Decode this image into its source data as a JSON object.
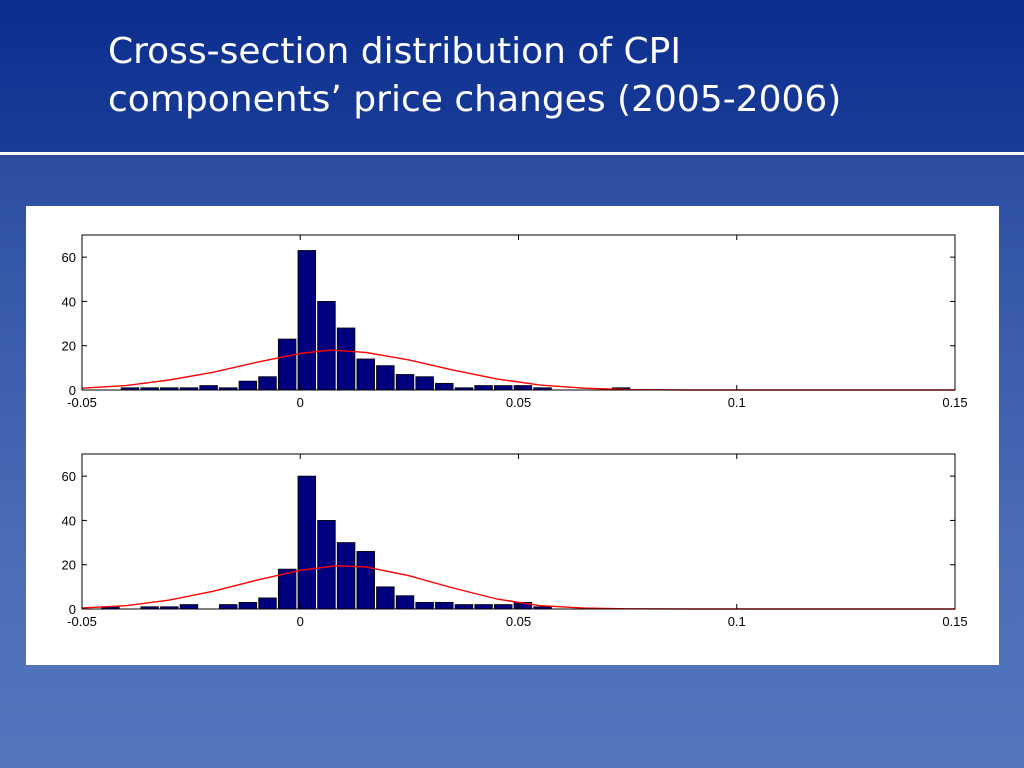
{
  "slide": {
    "title_line1": "Cross-section distribution of CPI",
    "title_line2": "components’ price changes (2005-2006)"
  },
  "colors": {
    "bar_fill": "#00007f",
    "curve": "#ff0000",
    "title_band": "#0b2e8e",
    "background": "#4a6cb6"
  },
  "chart_data": [
    {
      "type": "bar",
      "title": "",
      "xlabel": "",
      "ylabel": "",
      "xlim": [
        -0.05,
        0.15
      ],
      "ylim": [
        0,
        70
      ],
      "x_ticks": [
        "-0.05",
        "0",
        "0.05",
        "0.1",
        "0.15"
      ],
      "y_ticks": [
        "0",
        "20",
        "40",
        "60"
      ],
      "bin_width": 0.0045,
      "bin_centers": [
        -0.0435,
        -0.039,
        -0.0345,
        -0.03,
        -0.0255,
        -0.021,
        -0.0165,
        -0.012,
        -0.0075,
        -0.003,
        0.0015,
        0.006,
        0.0105,
        0.015,
        0.0195,
        0.024,
        0.0285,
        0.033,
        0.0375,
        0.042,
        0.0465,
        0.051,
        0.0555,
        0.06,
        0.0645,
        0.069,
        0.0735
      ],
      "values": [
        0,
        1,
        1,
        1,
        1,
        2,
        1,
        4,
        6,
        23,
        63,
        40,
        28,
        14,
        11,
        7,
        6,
        3,
        1,
        2,
        2,
        2,
        1,
        0,
        0,
        0,
        1
      ],
      "fit_curve": {
        "x": [
          -0.05,
          -0.04,
          -0.03,
          -0.02,
          -0.01,
          0,
          0.007,
          0.015,
          0.025,
          0.035,
          0.045,
          0.055,
          0.065,
          0.075,
          0.09,
          0.15
        ],
        "y": [
          0.8,
          2.0,
          4.5,
          8.0,
          12.5,
          16.5,
          18.0,
          17.0,
          13.5,
          9.0,
          5.0,
          2.2,
          0.8,
          0.2,
          0.0,
          0.0
        ]
      },
      "grid": false
    },
    {
      "type": "bar",
      "title": "",
      "xlabel": "",
      "ylabel": "",
      "xlim": [
        -0.05,
        0.15
      ],
      "ylim": [
        0,
        70
      ],
      "x_ticks": [
        "-0.05",
        "0",
        "0.05",
        "0.1",
        "0.15"
      ],
      "y_ticks": [
        "0",
        "20",
        "40",
        "60"
      ],
      "bin_width": 0.0045,
      "bin_centers": [
        -0.0435,
        -0.039,
        -0.0345,
        -0.03,
        -0.0255,
        -0.021,
        -0.0165,
        -0.012,
        -0.0075,
        -0.003,
        0.0015,
        0.006,
        0.0105,
        0.015,
        0.0195,
        0.024,
        0.0285,
        0.033,
        0.0375,
        0.042,
        0.0465,
        0.051,
        0.0555,
        0.06
      ],
      "values": [
        1,
        0,
        1,
        1,
        2,
        0,
        2,
        3,
        5,
        18,
        60,
        40,
        30,
        26,
        10,
        6,
        3,
        3,
        2,
        2,
        2,
        3,
        1,
        0
      ],
      "fit_curve": {
        "x": [
          -0.05,
          -0.04,
          -0.03,
          -0.02,
          -0.01,
          0,
          0.008,
          0.015,
          0.025,
          0.035,
          0.045,
          0.055,
          0.065,
          0.075,
          0.09,
          0.15
        ],
        "y": [
          0.5,
          1.5,
          4.0,
          8.0,
          13.0,
          17.5,
          19.5,
          19.0,
          15.0,
          9.5,
          4.5,
          1.5,
          0.4,
          0.1,
          0.0,
          0.0
        ]
      },
      "grid": false
    }
  ]
}
